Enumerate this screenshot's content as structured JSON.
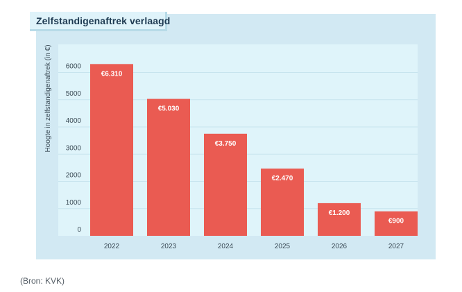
{
  "chart_data": {
    "type": "bar",
    "title": "Zelfstandigenaftrek verlaagd",
    "ylabel": "Hoogte in zelfstandigenaftrek (in €)",
    "xlabel": "",
    "categories": [
      "2022",
      "2023",
      "2024",
      "2025",
      "2026",
      "2027"
    ],
    "values": [
      6310,
      5030,
      3750,
      2470,
      1200,
      900
    ],
    "value_labels": [
      "€6.310",
      "€5.030",
      "€3.750",
      "€2.470",
      "€1.200",
      "€900"
    ],
    "yticks": [
      0,
      1000,
      2000,
      3000,
      4000,
      5000,
      6000
    ],
    "ylim": [
      0,
      7000
    ],
    "grid": true,
    "bar_color": "#ea5b52",
    "plot_background": "#dff4fa"
  },
  "source": "(Bron: KVK)"
}
